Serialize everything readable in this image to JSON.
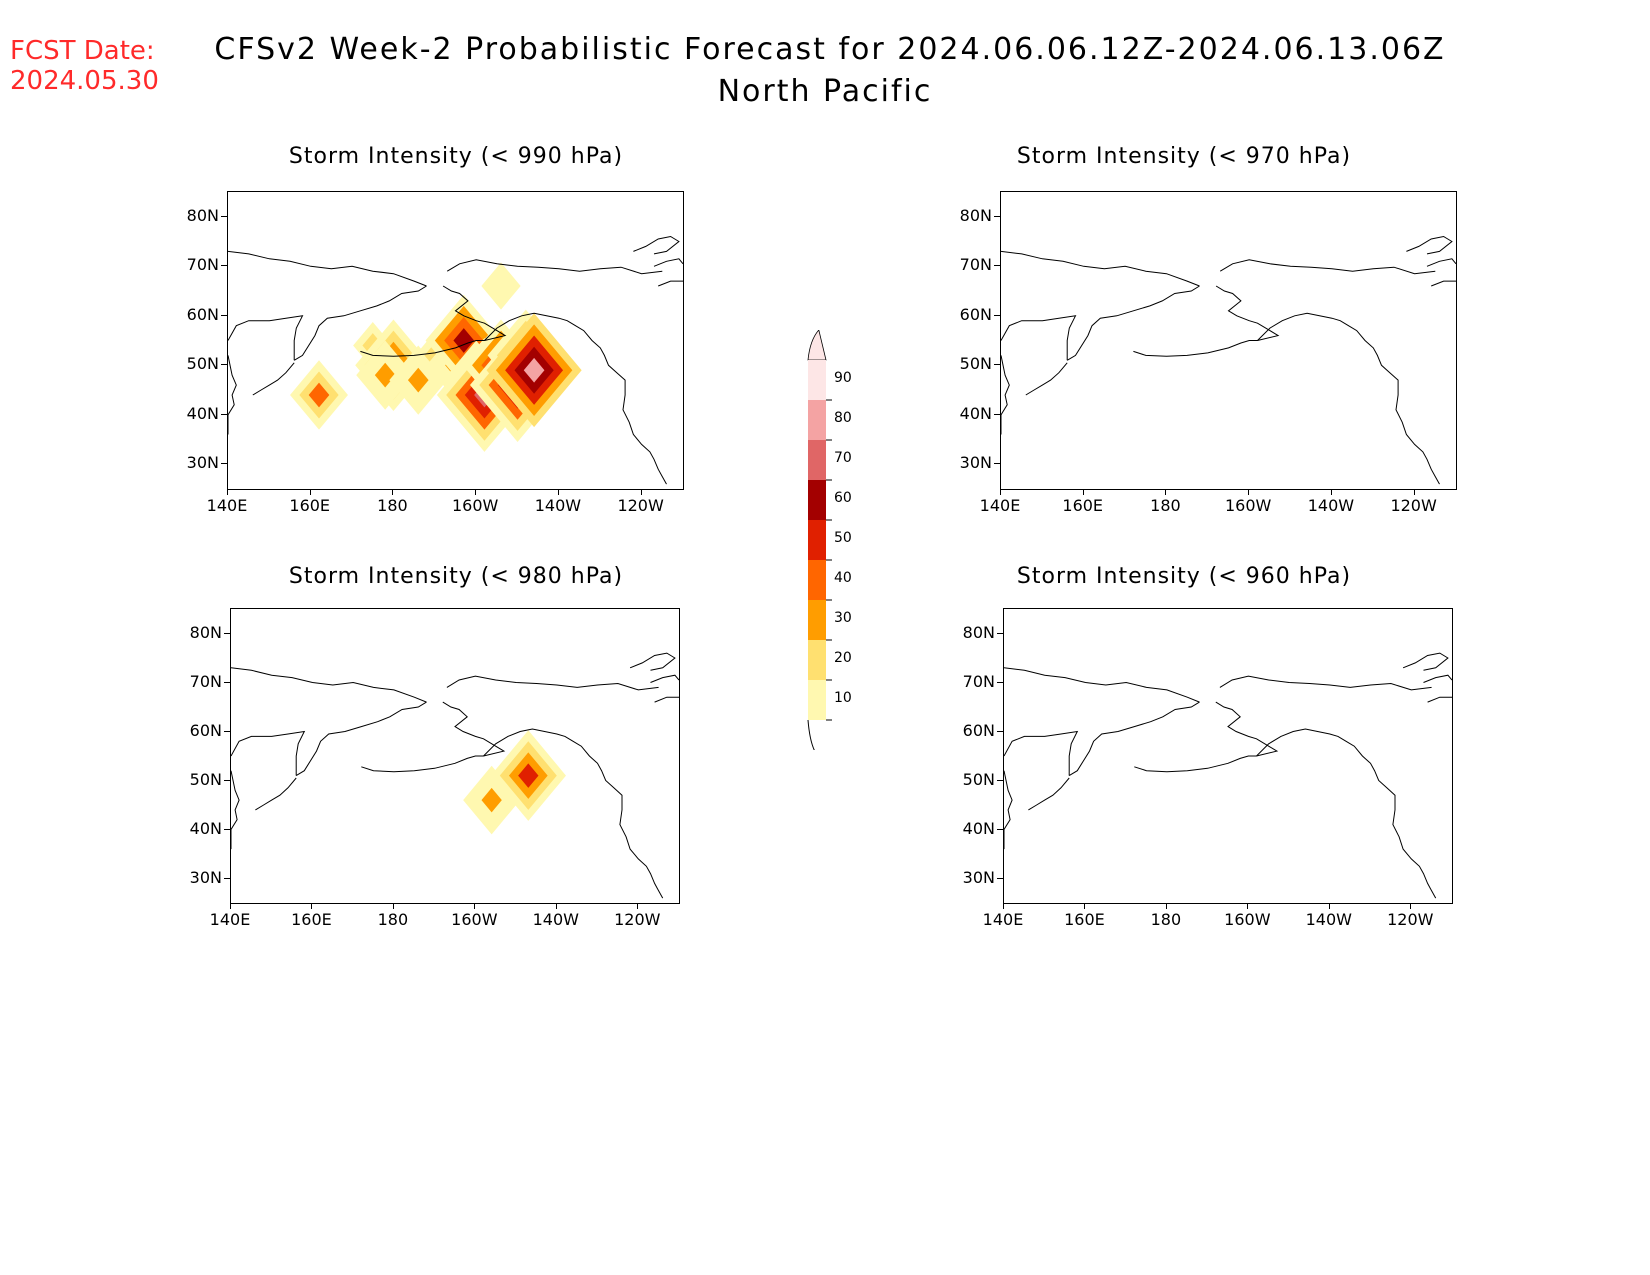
{
  "header": {
    "fcst_label": "FCST Date:",
    "fcst_date": "2024.05.30",
    "title": "CFSv2 Week-2 Probabilistic Forecast for 2024.06.06.12Z-2024.06.13.06Z",
    "subtitle": "North Pacific"
  },
  "axes": {
    "lat_labels": [
      "80N",
      "70N",
      "60N",
      "50N",
      "40N",
      "30N"
    ],
    "lat_values": [
      80,
      70,
      60,
      50,
      40,
      30
    ],
    "lon_labels": [
      "140E",
      "160E",
      "180",
      "160W",
      "140W",
      "120W"
    ],
    "lon_values": [
      140,
      160,
      180,
      200,
      220,
      240
    ],
    "lon_range": [
      140,
      250
    ],
    "lat_range": [
      25,
      85
    ]
  },
  "panels": [
    {
      "id": "p990",
      "title": "Storm Intensity (< 990 hPa)",
      "has_data": true
    },
    {
      "id": "p970",
      "title": "Storm Intensity (< 970 hPa)",
      "has_data": false
    },
    {
      "id": "p980",
      "title": "Storm Intensity (< 980 hPa)",
      "has_data": true
    },
    {
      "id": "p960",
      "title": "Storm Intensity (< 960 hPa)",
      "has_data": false
    }
  ],
  "legend": {
    "labels": [
      "90",
      "80",
      "70",
      "60",
      "50",
      "40",
      "30",
      "20",
      "10"
    ],
    "colors": [
      "#fde6e6",
      "#f4a3a3",
      "#e06666",
      "#a30000",
      "#e02000",
      "#ff6600",
      "#ff9d00",
      "#ffe070",
      "#fff8b0"
    ]
  },
  "chart_data": {
    "type": "heatmap",
    "units": "probability (%)",
    "levels": [
      10,
      20,
      30,
      40,
      50,
      60,
      70,
      80,
      90
    ],
    "fields": {
      "p990": [
        {
          "lon": 162,
          "lat": 44,
          "p": 40
        },
        {
          "lon": 175,
          "lat": 54,
          "p": 20
        },
        {
          "lon": 180,
          "lat": 50,
          "p": 50
        },
        {
          "lon": 178,
          "lat": 48,
          "p": 30
        },
        {
          "lon": 186,
          "lat": 47,
          "p": 30
        },
        {
          "lon": 190,
          "lat": 52,
          "p": 20
        },
        {
          "lon": 195,
          "lat": 50,
          "p": 30
        },
        {
          "lon": 197,
          "lat": 55,
          "p": 60
        },
        {
          "lon": 200,
          "lat": 48,
          "p": 30
        },
        {
          "lon": 202,
          "lat": 44,
          "p": 70
        },
        {
          "lon": 206,
          "lat": 50,
          "p": 60
        },
        {
          "lon": 210,
          "lat": 46,
          "p": 70
        },
        {
          "lon": 212,
          "lat": 52,
          "p": 50
        },
        {
          "lon": 214,
          "lat": 49,
          "p": 80
        },
        {
          "lon": 206,
          "lat": 66,
          "p": 10
        }
      ],
      "p970": [],
      "p980": [
        {
          "lon": 204,
          "lat": 46,
          "p": 30
        },
        {
          "lon": 213,
          "lat": 51,
          "p": 50
        }
      ],
      "p960": []
    }
  }
}
